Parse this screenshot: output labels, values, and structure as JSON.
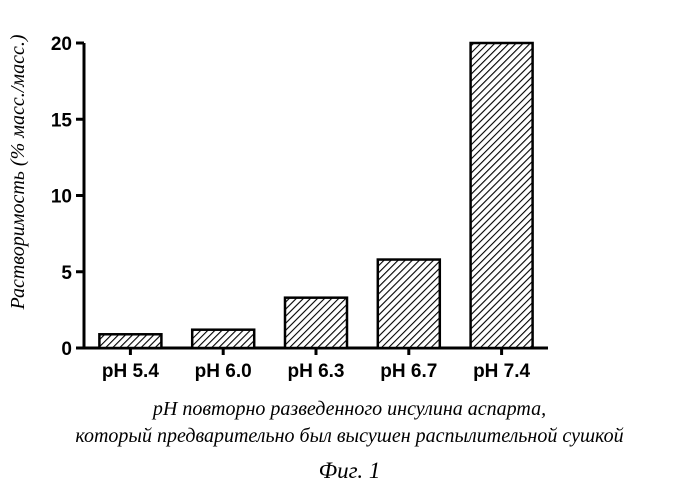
{
  "chart_data": {
    "type": "bar",
    "categories": [
      "pH 5.4",
      "pH 6.0",
      "pH 6.3",
      "pH 6.7",
      "pH 7.4"
    ],
    "values": [
      0.9,
      1.2,
      3.3,
      5.8,
      20
    ],
    "ylabel": "Растворимость (% масс./масс.)",
    "xlabel_lines": [
      "pH повторно разведенного инсулина аспарта,",
      "который предварительно был высушен распылительной сушкой"
    ],
    "ylim": [
      0,
      20
    ],
    "yticks": [
      0,
      5,
      10,
      15,
      20
    ],
    "ytick_labels": [
      "0",
      "5",
      "10",
      "15",
      "20"
    ],
    "grid": false,
    "bar_fill": "diagonal hatch",
    "bar_color": "#000000"
  },
  "figure_label": "Фиг. 1"
}
